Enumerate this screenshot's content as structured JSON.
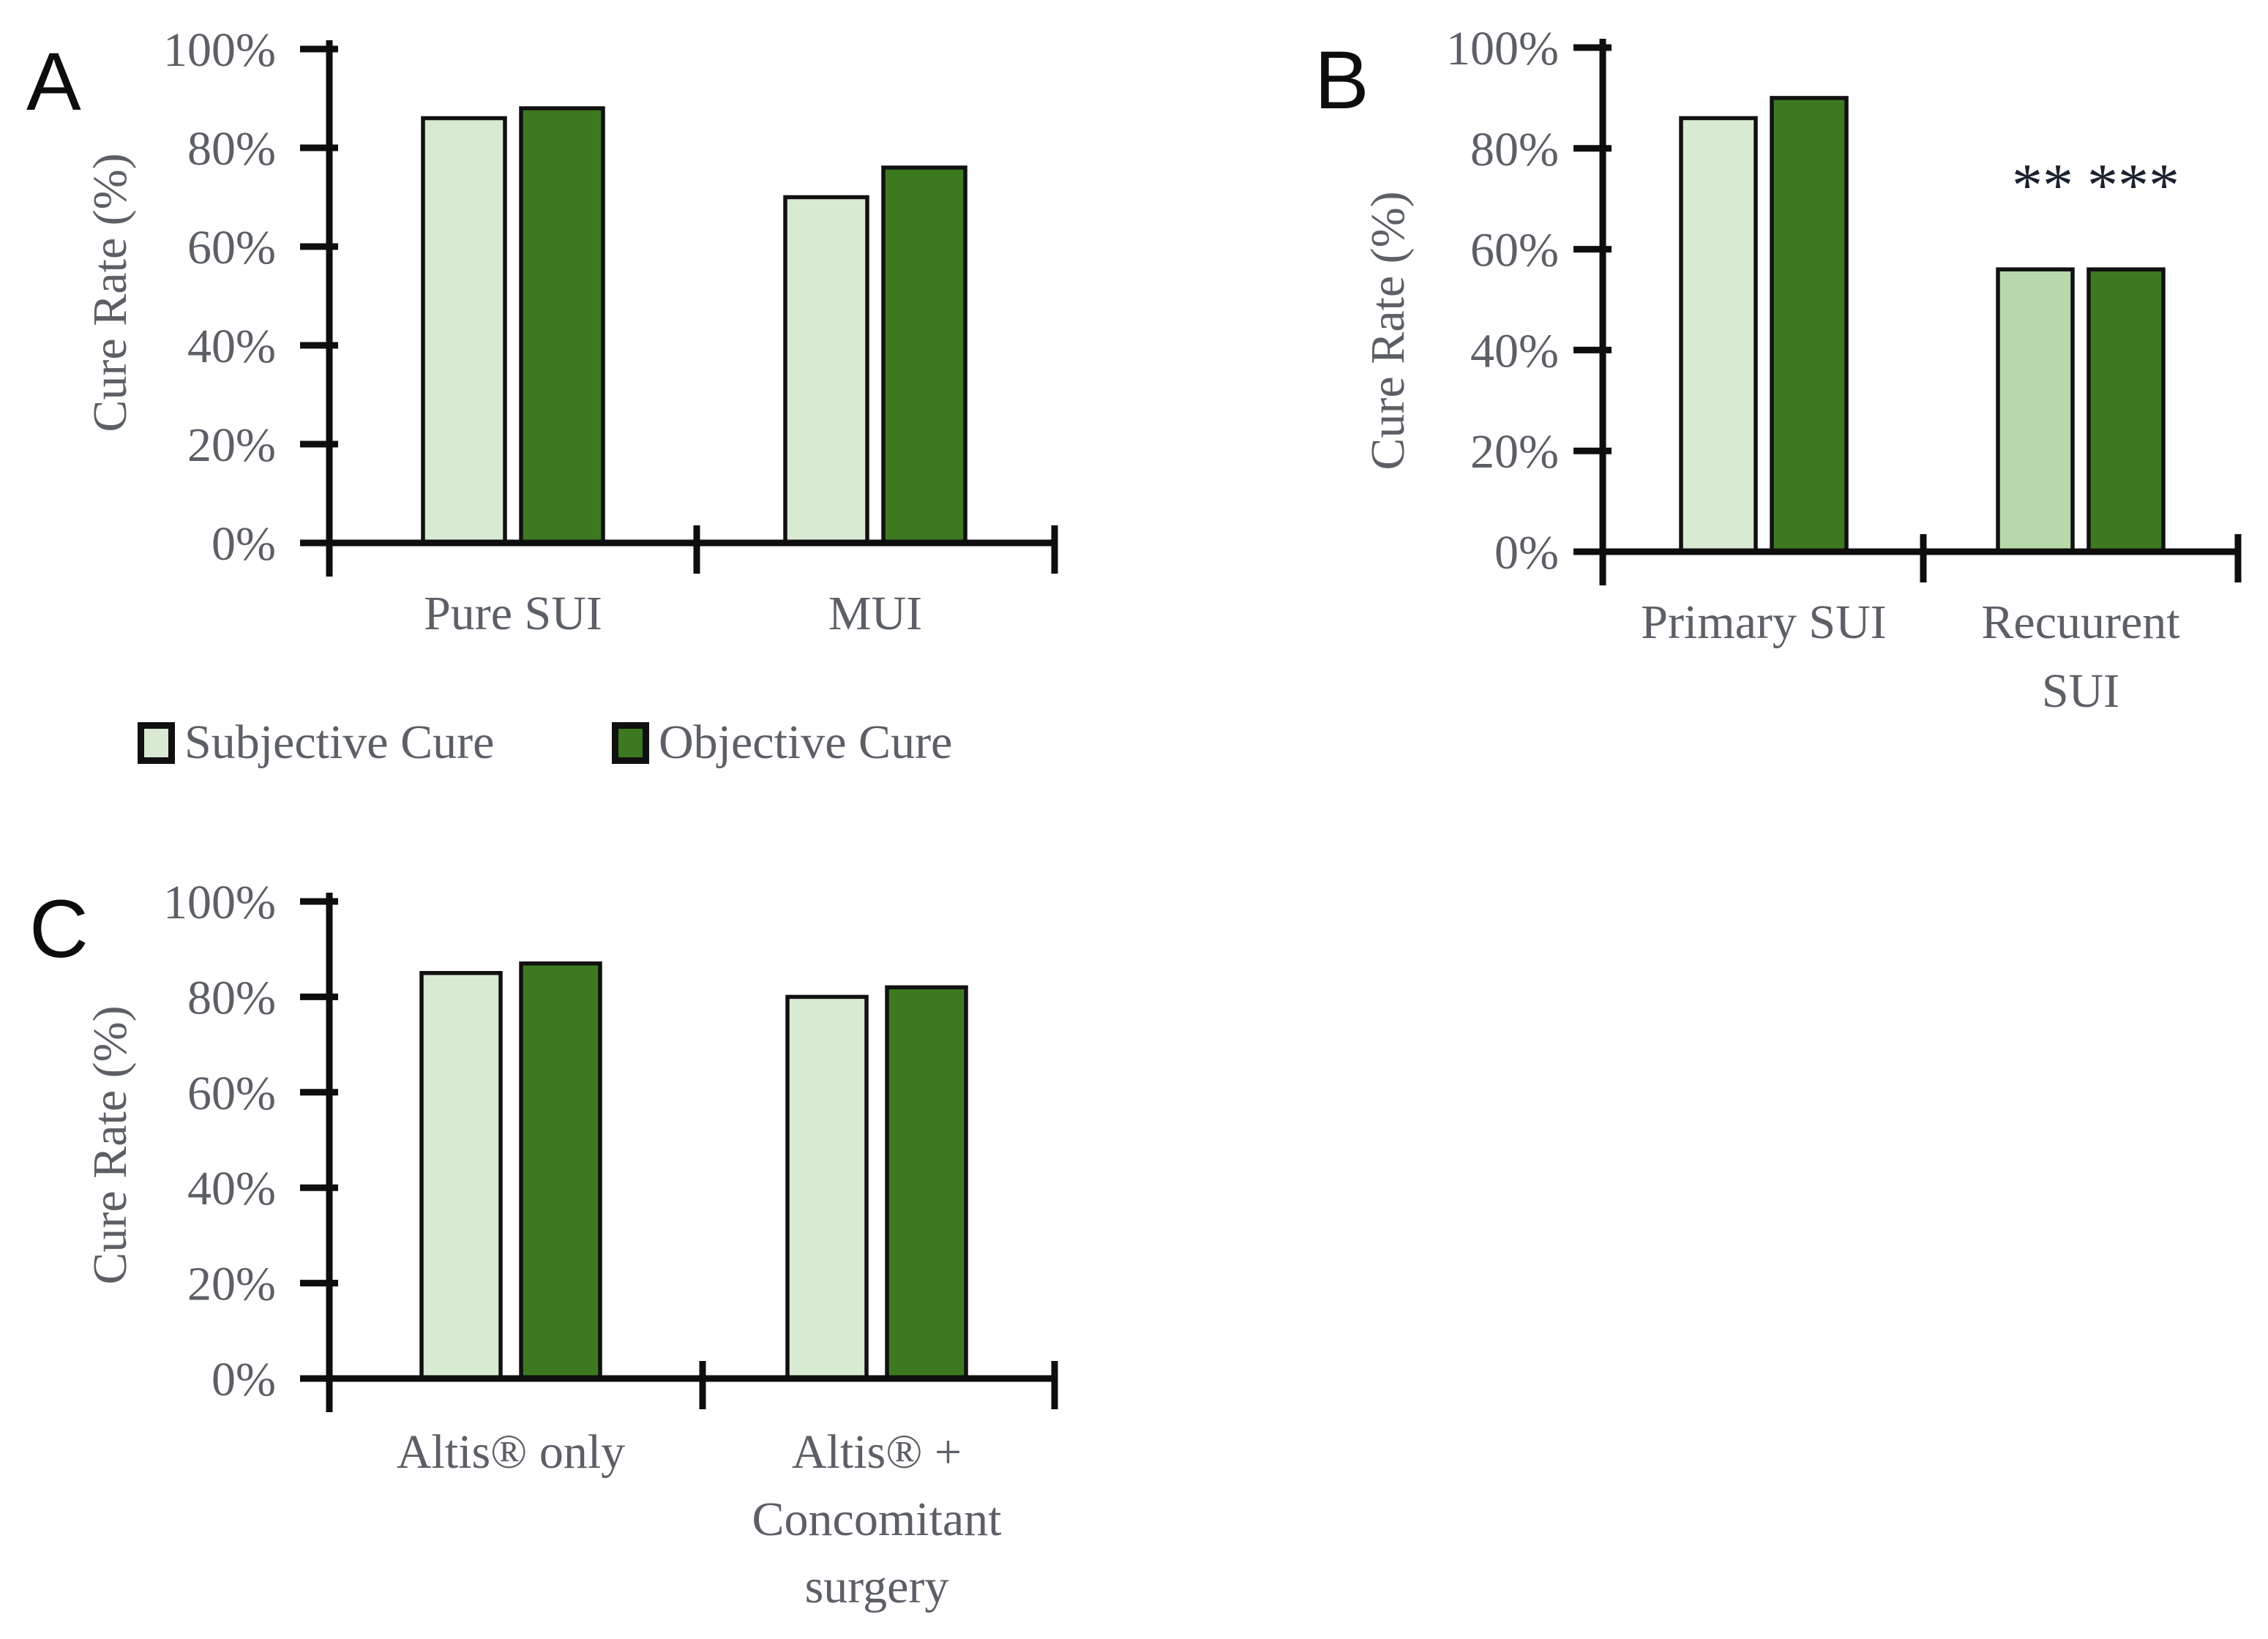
{
  "figure": {
    "background": "#ffffff",
    "colors": {
      "subjective_fill": "#d9ead3",
      "subjective_recurrent_fill": "#b7d9a9",
      "objective_fill": "#3d7a1f",
      "bar_outline": "#111111",
      "axis": "#0e0e0e",
      "label_gray": "#5c6066",
      "panel_letter": "#0d0d0d",
      "annotation": "#1a2230"
    },
    "legend": {
      "items": [
        {
          "label": "Subjective Cure",
          "swatch_color": "#d9ead3"
        },
        {
          "label": "Objective Cure",
          "swatch_color": "#3d7a1f"
        }
      ]
    },
    "panels": [
      {
        "letter": "A",
        "ylabel": "Cure Rate (%)"
      },
      {
        "letter": "B",
        "ylabel": "Cure Rate (%)"
      },
      {
        "letter": "C",
        "ylabel": "Cure Rate (%)"
      }
    ]
  },
  "chart_data": [
    {
      "panel": "A",
      "type": "bar",
      "title": "",
      "xlabel": "",
      "ylabel": "Cure Rate (%)",
      "ylim": [
        0,
        100
      ],
      "grid": false,
      "legend_position": "below-left",
      "yticks": [
        100,
        80,
        60,
        40,
        20,
        0
      ],
      "ytick_labels": [
        "100%",
        "80%",
        "60%",
        "40%",
        "20%",
        "0%"
      ],
      "categories": [
        "Pure SUI",
        "MUI"
      ],
      "categories_display": [
        [
          "Pure SUI"
        ],
        [
          "MUI"
        ]
      ],
      "series": [
        {
          "name": "Subjective Cure",
          "color": "#d9ead3",
          "values": [
            86,
            70
          ]
        },
        {
          "name": "Objective Cure",
          "color": "#3d7a1f",
          "values": [
            88,
            76
          ]
        }
      ],
      "annotations": []
    },
    {
      "panel": "B",
      "type": "bar",
      "title": "",
      "xlabel": "",
      "ylabel": "Cure Rate (%)",
      "ylim": [
        0,
        100
      ],
      "grid": false,
      "legend_position": "none",
      "yticks": [
        100,
        80,
        60,
        40,
        20,
        0
      ],
      "ytick_labels": [
        "100%",
        "80%",
        "60%",
        "40%",
        "20%",
        "0%"
      ],
      "categories": [
        "Primary SUI",
        "Recuurent SUI"
      ],
      "categories_display": [
        [
          "Primary SUI"
        ],
        [
          "Recuurent",
          "SUI"
        ]
      ],
      "series": [
        {
          "name": "Subjective Cure",
          "color": "#d9ead3",
          "point_colors": [
            "#d9ead3",
            "#b7d9a9"
          ],
          "values": [
            86,
            56
          ]
        },
        {
          "name": "Objective Cure",
          "color": "#3d7a1f",
          "values": [
            90,
            56
          ]
        }
      ],
      "annotations": [
        {
          "text": "**",
          "category_index": 1,
          "series_index": 0
        },
        {
          "text": "***",
          "category_index": 1,
          "series_index": 1
        }
      ]
    },
    {
      "panel": "C",
      "type": "bar",
      "title": "",
      "xlabel": "",
      "ylabel": "Cure Rate (%)",
      "ylim": [
        0,
        100
      ],
      "grid": false,
      "legend_position": "none",
      "yticks": [
        100,
        80,
        60,
        40,
        20,
        0
      ],
      "ytick_labels": [
        "100%",
        "80%",
        "60%",
        "40%",
        "20%",
        "0%"
      ],
      "categories": [
        "Altis® only",
        "Altis® + Concomitant surgery"
      ],
      "categories_display": [
        [
          "Altis® only"
        ],
        [
          "Altis® +",
          "Concomitant",
          "surgery"
        ]
      ],
      "series": [
        {
          "name": "Subjective Cure",
          "color": "#d9ead3",
          "values": [
            85,
            80
          ]
        },
        {
          "name": "Objective Cure",
          "color": "#3d7a1f",
          "values": [
            87,
            82
          ]
        }
      ],
      "annotations": []
    }
  ]
}
